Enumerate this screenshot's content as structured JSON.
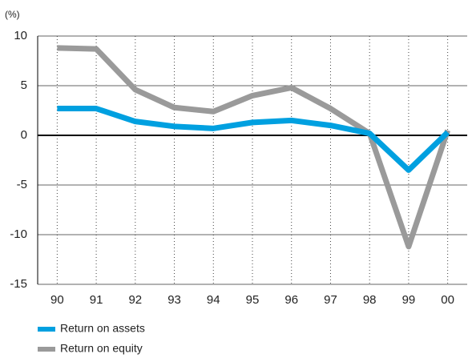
{
  "chart_data": {
    "type": "line",
    "y_unit_label": "(%)",
    "categories": [
      "90",
      "91",
      "92",
      "93",
      "94",
      "95",
      "96",
      "97",
      "98",
      "99",
      "00"
    ],
    "series": [
      {
        "name": "Return on assets",
        "color": "#00a0e0",
        "values": [
          2.7,
          2.7,
          1.4,
          0.9,
          0.7,
          1.3,
          1.5,
          1.0,
          0.2,
          -3.5,
          0.3
        ]
      },
      {
        "name": "Return on equity",
        "color": "#9a9a9a",
        "values": [
          8.8,
          8.7,
          4.6,
          2.8,
          2.4,
          4.0,
          4.8,
          2.7,
          0.2,
          -11.2,
          0.5
        ]
      }
    ],
    "ylim": [
      -15,
      10
    ],
    "yticks": [
      -15,
      -10,
      -5,
      0,
      5,
      10
    ],
    "grid": true
  }
}
